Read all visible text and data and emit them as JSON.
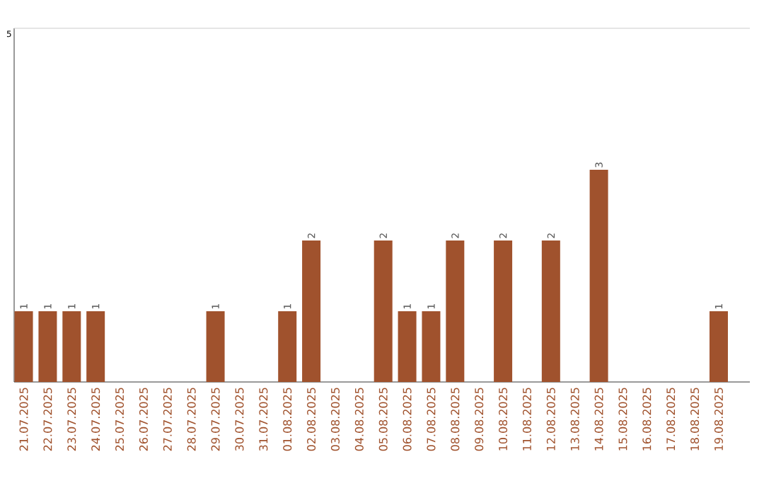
{
  "chart_data": {
    "type": "bar",
    "categories": [
      "21.07.2025",
      "22.07.2025",
      "23.07.2025",
      "24.07.2025",
      "25.07.2025",
      "26.07.2025",
      "27.07.2025",
      "28.07.2025",
      "29.07.2025",
      "30.07.2025",
      "31.07.2025",
      "01.08.2025",
      "02.08.2025",
      "03.08.2025",
      "04.08.2025",
      "05.08.2025",
      "06.08.2025",
      "07.08.2025",
      "08.08.2025",
      "09.08.2025",
      "10.08.2025",
      "11.08.2025",
      "12.08.2025",
      "13.08.2025",
      "14.08.2025",
      "15.08.2025",
      "16.08.2025",
      "17.08.2025",
      "18.08.2025",
      "19.08.2025"
    ],
    "values": [
      1,
      1,
      1,
      1,
      0,
      0,
      0,
      0,
      1,
      0,
      0,
      1,
      2,
      0,
      0,
      2,
      1,
      1,
      2,
      0,
      2,
      0,
      2,
      0,
      3,
      0,
      0,
      0,
      0,
      1
    ],
    "value_labels": [
      "1",
      "1",
      "1",
      "1",
      null,
      null,
      null,
      null,
      "1",
      null,
      null,
      "1",
      "2",
      null,
      null,
      "2",
      "1",
      "1",
      "2",
      null,
      "2",
      null,
      "2",
      null,
      "3",
      null,
      null,
      null,
      null,
      "1"
    ],
    "color": "#a0522d",
    "ylim": [
      0,
      5
    ],
    "ref_lines": [
      {
        "axis": "y",
        "value": 5,
        "label": "5",
        "color": "#cccccc"
      }
    ]
  }
}
